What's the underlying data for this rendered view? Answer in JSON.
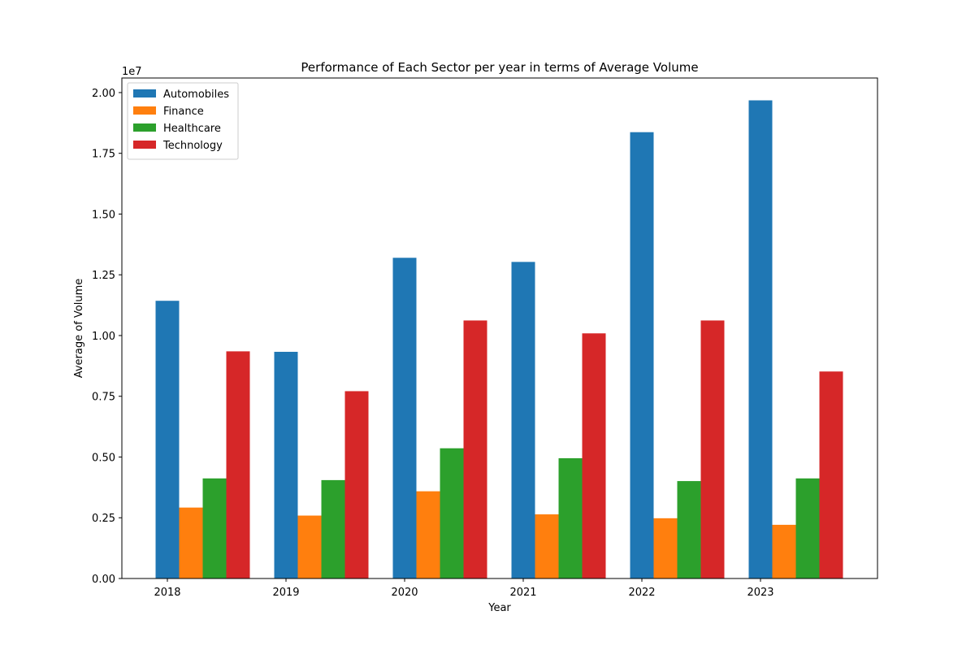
{
  "chart_data": {
    "type": "bar",
    "title": "Performance of Each Sector per year in terms of Average Volume",
    "xlabel": "Year",
    "ylabel": "Average of Volume",
    "y_offset_text": "1e7",
    "categories": [
      "2018",
      "2019",
      "2020",
      "2021",
      "2022",
      "2023"
    ],
    "ylim": [
      0,
      20600000
    ],
    "yticks": [
      0,
      2500000,
      5000000,
      7500000,
      10000000,
      12500000,
      15000000,
      17500000,
      20000000
    ],
    "ytick_labels": [
      "0.00",
      "0.25",
      "0.50",
      "0.75",
      "1.00",
      "1.25",
      "1.50",
      "1.75",
      "2.00"
    ],
    "grid": false,
    "legend_position": "top-left",
    "series": [
      {
        "name": "Automobiles",
        "color": "#1f77b4",
        "values": [
          11430000,
          9330000,
          13200000,
          13030000,
          18370000,
          19680000
        ]
      },
      {
        "name": "Finance",
        "color": "#ff7f0e",
        "values": [
          2920000,
          2590000,
          3590000,
          2640000,
          2480000,
          2210000
        ]
      },
      {
        "name": "Healthcare",
        "color": "#2ca02c",
        "values": [
          4120000,
          4050000,
          5360000,
          4950000,
          4010000,
          4120000
        ]
      },
      {
        "name": "Technology",
        "color": "#d62728",
        "values": [
          9350000,
          7710000,
          10620000,
          10090000,
          10620000,
          8520000
        ]
      }
    ]
  }
}
